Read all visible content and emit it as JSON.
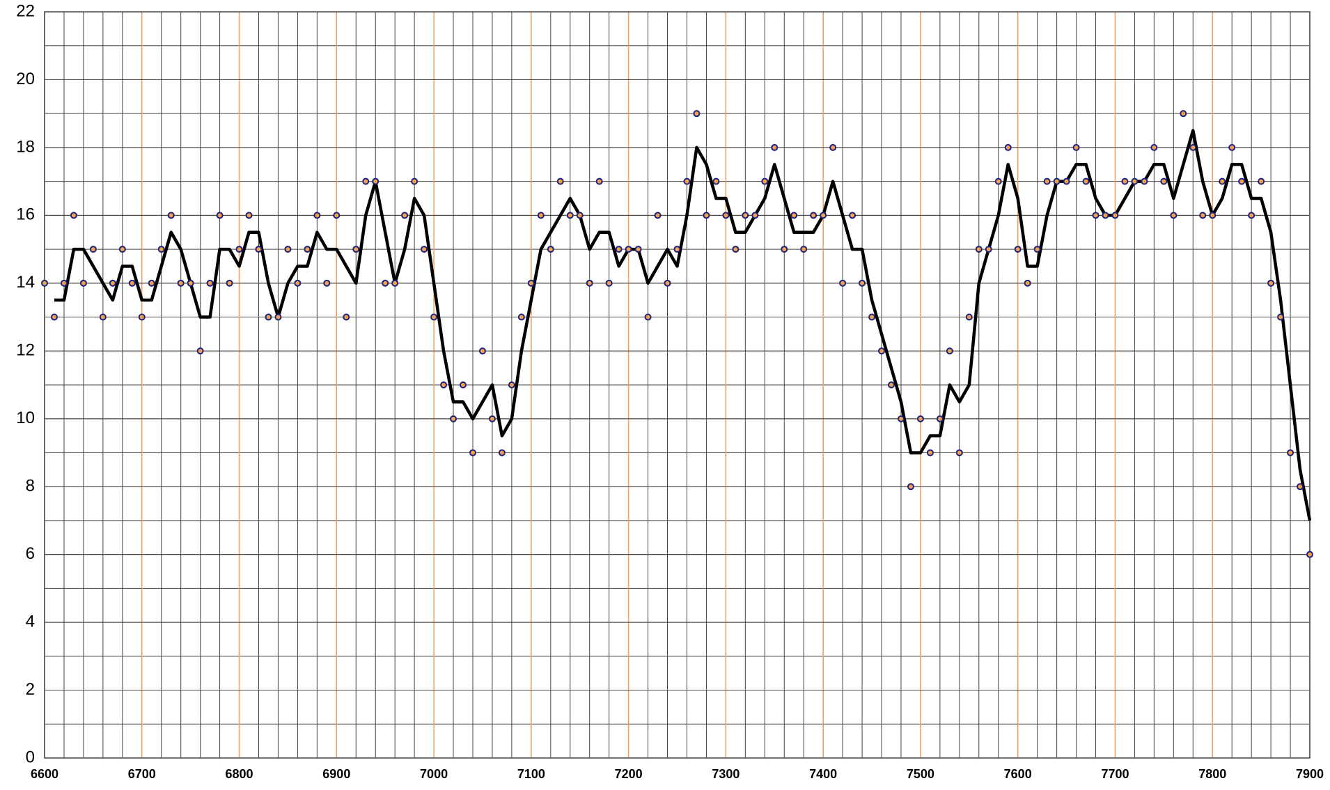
{
  "chart_data": {
    "type": "scatter-line",
    "x": [
      6600,
      6610,
      6620,
      6630,
      6640,
      6650,
      6660,
      6670,
      6680,
      6690,
      6700,
      6710,
      6720,
      6730,
      6740,
      6750,
      6760,
      6770,
      6780,
      6790,
      6800,
      6810,
      6820,
      6830,
      6840,
      6850,
      6860,
      6870,
      6880,
      6890,
      6900,
      6910,
      6920,
      6930,
      6940,
      6950,
      6960,
      6970,
      6980,
      6990,
      7000,
      7010,
      7020,
      7030,
      7040,
      7050,
      7060,
      7070,
      7080,
      7090,
      7100,
      7110,
      7120,
      7130,
      7140,
      7150,
      7160,
      7170,
      7180,
      7190,
      7200,
      7210,
      7220,
      7230,
      7240,
      7250,
      7260,
      7270,
      7280,
      7290,
      7300,
      7310,
      7320,
      7330,
      7340,
      7350,
      7360,
      7370,
      7380,
      7390,
      7400,
      7410,
      7420,
      7430,
      7440,
      7450,
      7460,
      7470,
      7480,
      7490,
      7500,
      7510,
      7520,
      7530,
      7540,
      7550,
      7560,
      7570,
      7580,
      7590,
      7600,
      7610,
      7620,
      7630,
      7640,
      7650,
      7660,
      7670,
      7680,
      7690,
      7700,
      7710,
      7720,
      7730,
      7740,
      7750,
      7760,
      7770,
      7780,
      7790,
      7800,
      7810,
      7820,
      7830,
      7840,
      7850,
      7860,
      7870,
      7880,
      7890,
      7900
    ],
    "series": [
      {
        "kind": "points",
        "color": "#f0a050",
        "edge_color": "#1a237e",
        "values": [
          14,
          13,
          14,
          16,
          14,
          15,
          13,
          14,
          15,
          14,
          13,
          14,
          15,
          16,
          14,
          14,
          12,
          14,
          16,
          14,
          15,
          16,
          15,
          13,
          13,
          15,
          14,
          15,
          16,
          14,
          16,
          13,
          15,
          17,
          17,
          14,
          14,
          16,
          17,
          15,
          13,
          11,
          10,
          11,
          9,
          12,
          10,
          9,
          11,
          13,
          14,
          16,
          15,
          17,
          16,
          16,
          14,
          17,
          14,
          15,
          15,
          15,
          13,
          16,
          14,
          15,
          17,
          19,
          16,
          17,
          16,
          15,
          16,
          16,
          17,
          18,
          15,
          16,
          15,
          16,
          16,
          18,
          14,
          16,
          14,
          13,
          12,
          11,
          10,
          8,
          10,
          9,
          10,
          12,
          9,
          13,
          15,
          15,
          17,
          18,
          15,
          14,
          15,
          17,
          17,
          17,
          18,
          17,
          16,
          16,
          16,
          17,
          17,
          17,
          18,
          17,
          16,
          19,
          18,
          16,
          16,
          17,
          18,
          17,
          16,
          17,
          14,
          13,
          9,
          8,
          6
        ]
      },
      {
        "kind": "line",
        "color": "#000000",
        "values": [
          null,
          13.5,
          13.5,
          15,
          15,
          14.5,
          14,
          13.5,
          14.5,
          14.5,
          13.5,
          13.5,
          14.5,
          15.5,
          15,
          14,
          13,
          13,
          15,
          15,
          14.5,
          15.5,
          15.5,
          14,
          13,
          14,
          14.5,
          14.5,
          15.5,
          15,
          15,
          14.5,
          14,
          16,
          17,
          15.5,
          14,
          15,
          16.5,
          16,
          14,
          12,
          10.5,
          10.5,
          10,
          10.5,
          11,
          9.5,
          10,
          12,
          13.5,
          15,
          15.5,
          16,
          16.5,
          16,
          15,
          15.5,
          15.5,
          14.5,
          15,
          15,
          14,
          14.5,
          15,
          14.5,
          16,
          18,
          17.5,
          16.5,
          16.5,
          15.5,
          15.5,
          16,
          16.5,
          17.5,
          16.5,
          15.5,
          15.5,
          15.5,
          16,
          17,
          16,
          15,
          15,
          13.5,
          12.5,
          11.5,
          10.5,
          9,
          9,
          9.5,
          9.5,
          11,
          10.5,
          11,
          14,
          15,
          16,
          17.5,
          16.5,
          14.5,
          14.5,
          16,
          17,
          17,
          17.5,
          17.5,
          16.5,
          16,
          16,
          16.5,
          17,
          17,
          17.5,
          17.5,
          16.5,
          17.5,
          18.5,
          17,
          16,
          16.5,
          17.5,
          17.5,
          16.5,
          16.5,
          15.5,
          13.5,
          11,
          8.5,
          7
        ]
      }
    ],
    "xlim": [
      6600,
      7900
    ],
    "xticks": [
      6600,
      6700,
      6800,
      6900,
      7000,
      7100,
      7200,
      7300,
      7400,
      7500,
      7600,
      7700,
      7800,
      7900
    ],
    "ylim": [
      0,
      22
    ],
    "yticks": [
      0,
      2,
      4,
      6,
      8,
      10,
      12,
      14,
      16,
      18,
      20,
      22
    ],
    "grid": true,
    "major_grid_color": "#f0a060"
  }
}
